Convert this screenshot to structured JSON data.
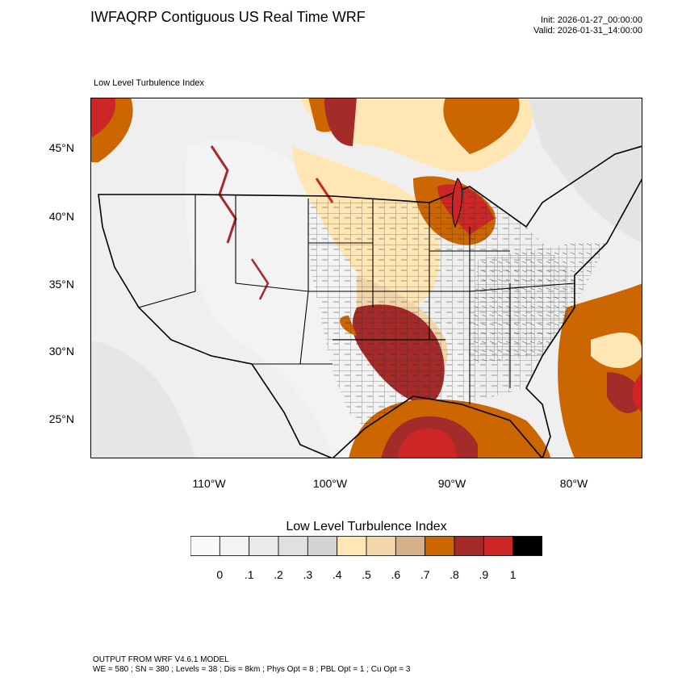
{
  "header": {
    "title": "IWFAQRP Contiguous US Real Time WRF",
    "init": "Init: 2026-01-27_00:00:00",
    "valid": "Valid: 2026-01-31_14:00:00"
  },
  "map": {
    "subtitle": "Low Level Turbulence Index",
    "lat_labels": [
      "45°N",
      "40°N",
      "35°N",
      "30°N",
      "25°N"
    ],
    "lon_labels": [
      "110°W",
      "100°W",
      "90°W",
      "80°W"
    ]
  },
  "colorbar": {
    "title": "Low Level Turbulence Index",
    "labels": [
      "0",
      ".1",
      ".2",
      ".3",
      ".4",
      ".5",
      ".6",
      ".7",
      ".8",
      ".9",
      "1"
    ],
    "colors": [
      "#fafafa",
      "#f3f3f3",
      "#ebebeb",
      "#e0e0e0",
      "#d4d4d4",
      "#ffe6b3",
      "#f3d5aa",
      "#d6b08a",
      "#cc6600",
      "#a52a2a",
      "#cd2626",
      "#000000"
    ]
  },
  "footer": {
    "line1": "OUTPUT FROM WRF V4.6.1 MODEL",
    "line2": "WE = 580 ; SN = 380 ; Levels = 38 ; Dis = 8km ; Phys Opt = 8 ; PBL Opt = 1 ; Cu Opt = 3"
  }
}
